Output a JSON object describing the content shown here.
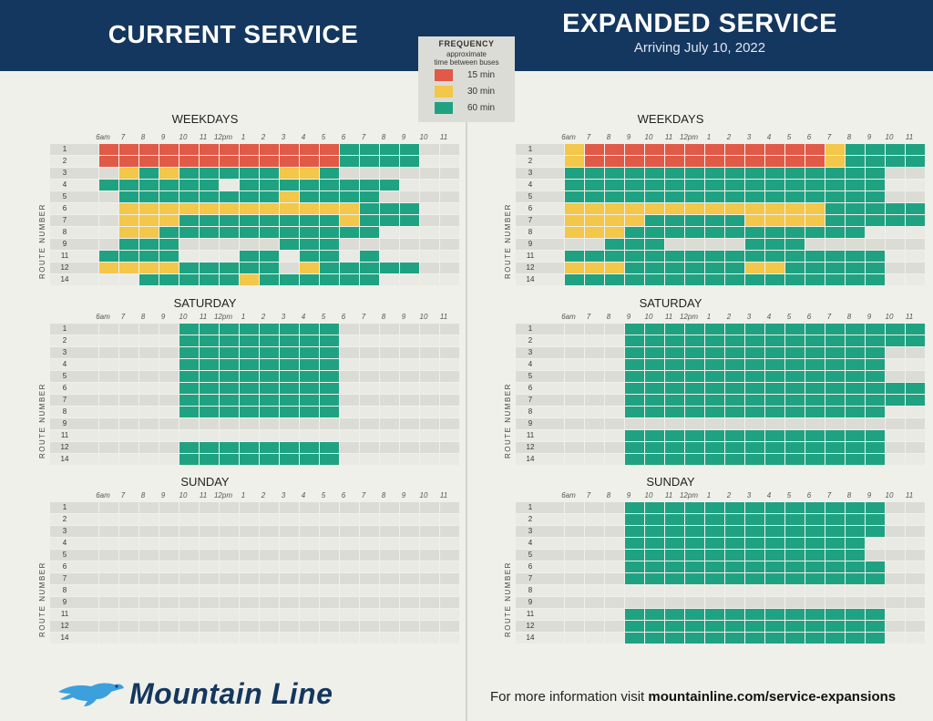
{
  "header": {
    "left_title": "CURRENT SERVICE",
    "right_title": "EXPANDED SERVICE",
    "right_subtitle": "Arriving July 10, 2022"
  },
  "legend": {
    "title": "FREQUENCY",
    "subtitle_1": "approximate",
    "subtitle_2": "time between buses",
    "items": [
      {
        "label": "15 min",
        "color": "#e05a47"
      },
      {
        "label": "30 min",
        "color": "#f2c74a"
      },
      {
        "label": "60 min",
        "color": "#1fa282"
      }
    ]
  },
  "axis_label": "ROUTE NUMBER",
  "hours": [
    "6am",
    "7",
    "8",
    "9",
    "10",
    "11",
    "12pm",
    "1",
    "2",
    "3",
    "4",
    "5",
    "6",
    "7",
    "8",
    "9",
    "10",
    "11"
  ],
  "routes": [
    "1",
    "2",
    "3",
    "4",
    "5",
    "6",
    "7",
    "8",
    "9",
    "11",
    "12",
    "14"
  ],
  "colors": {
    "15": "#e05a47",
    "30": "#f2c74a",
    "60": "#1fa282",
    "none": "#dcdcd6"
  },
  "panels": {
    "current": {
      "weekdays": {
        "title": "WEEKDAYS",
        "rows": [
          "0111111111111222200",
          "0111111111111222200",
          "0032322222332000000",
          "0222222022222222000",
          "0022222222322220000",
          "0033333333333322200",
          "0033322222222322200",
          "0033222222222220000",
          "0022200000222000000",
          "0222200022022020000",
          "0333322222032222200",
          "0002222232222220000"
        ]
      },
      "saturday": {
        "title": "SATURDAY",
        "rows": [
          "0000022222222000000",
          "0000022222222000000",
          "0000022222222000000",
          "0000022222222000000",
          "0000022222222000000",
          "0000022222222000000",
          "0000022222222000000",
          "0000022222222000000",
          "0000000000000000000",
          "0000000000000000000",
          "0000022222222000000",
          "0000022222222000000"
        ]
      },
      "sunday": {
        "title": "SUNDAY",
        "rows": [
          "0000000000000000000",
          "0000000000000000000",
          "0000000000000000000",
          "0000000000000000000",
          "0000000000000000000",
          "0000000000000000000",
          "0000000000000000000",
          "0000000000000000000",
          "0000000000000000000",
          "0000000000000000000",
          "0000000000000000000",
          "0000000000000000000"
        ]
      }
    },
    "expanded": {
      "weekdays": {
        "title": "WEEKDAYS",
        "rows": [
          "0311111111111132222",
          "0311111111111132222",
          "0222222222222222200",
          "0222222222222222200",
          "0222222222222222200",
          "0333333333333322222",
          "0333322222333322222",
          "0333222222222222000",
          "0002220000222000000",
          "0222222222222222200",
          "0333222222332222200",
          "0222222222222222200"
        ]
      },
      "saturday": {
        "title": "SATURDAY",
        "rows": [
          "0000222222222222222",
          "0000222222222222222",
          "0000222222222222200",
          "0000222222222222200",
          "0000222222222222200",
          "0000222222222222222",
          "0000222222222222222",
          "0000222222222222200",
          "0000000000000000000",
          "0000222222222222200",
          "0000222222222222200",
          "0000222222222222200"
        ]
      },
      "sunday": {
        "title": "SUNDAY",
        "rows": [
          "0000222222222222200",
          "0000222222222222200",
          "0000222222222222200",
          "0000222222222222000",
          "0000222222222222000",
          "0000222222222222200",
          "0000222222222222200",
          "0000000000000000000",
          "0000000000000000000",
          "0000222222222222200",
          "0000222222222222200",
          "0000222222222222200"
        ]
      }
    }
  },
  "footer": {
    "logo_text": "Mountain Line",
    "info_prefix": "For more information visit ",
    "info_link": "mountainline.com/service-expansions"
  }
}
